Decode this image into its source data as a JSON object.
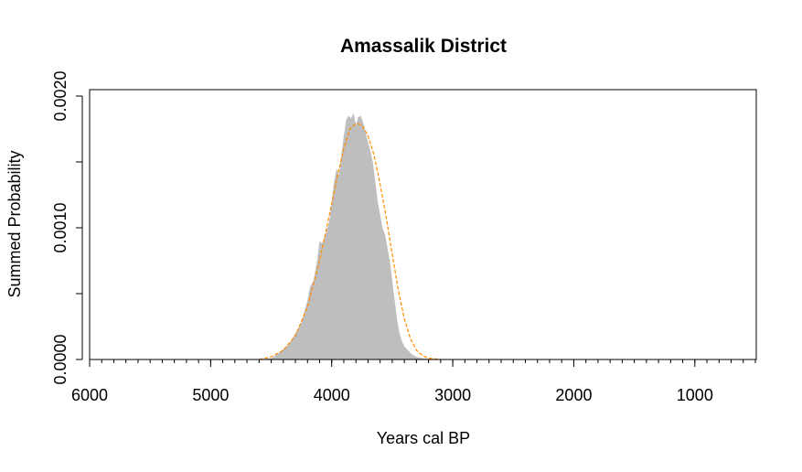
{
  "chart_data": {
    "type": "area",
    "title": "Amassalik District",
    "xlabel": "Years cal BP",
    "ylabel": "Summed Probability",
    "xlim": [
      6000,
      500
    ],
    "ylim": [
      0,
      0.002
    ],
    "x_ticks": [
      6000,
      5000,
      4000,
      3000,
      2000,
      1000
    ],
    "x_tick_labels": [
      "6000",
      "5000",
      "4000",
      "3000",
      "2000",
      "1000"
    ],
    "y_ticks": [
      0,
      0.0005,
      0.001,
      0.0015,
      0.002
    ],
    "y_tick_labels": [
      "0.0000",
      "",
      "0.0010",
      "",
      "0.0020"
    ],
    "x_minor_step": 100,
    "grid": false,
    "series": [
      {
        "kind": "histogram-area",
        "color": "#bebebe",
        "x": [
          4600,
          4500,
          4450,
          4400,
          4350,
          4300,
          4250,
          4200,
          4180,
          4150,
          4120,
          4100,
          4080,
          4050,
          4020,
          4000,
          3980,
          3960,
          3940,
          3920,
          3900,
          3880,
          3860,
          3840,
          3820,
          3800,
          3780,
          3760,
          3740,
          3720,
          3700,
          3680,
          3660,
          3640,
          3620,
          3600,
          3580,
          3560,
          3540,
          3520,
          3500,
          3480,
          3460,
          3440,
          3420,
          3400,
          3380,
          3360,
          3340,
          3300,
          3250,
          3200,
          3150,
          3100
        ],
        "values": [
          0,
          1e-05,
          4e-05,
          8e-05,
          0.00012,
          0.0002,
          0.00028,
          0.00045,
          0.00055,
          0.0006,
          0.00075,
          0.0009,
          0.00088,
          0.00095,
          0.00105,
          0.0012,
          0.00135,
          0.00145,
          0.0014,
          0.00155,
          0.0017,
          0.00182,
          0.00185,
          0.00183,
          0.00187,
          0.00178,
          0.00184,
          0.00185,
          0.0018,
          0.00172,
          0.00165,
          0.00158,
          0.0015,
          0.00135,
          0.0012,
          0.0011,
          0.001,
          0.00095,
          0.00085,
          0.00075,
          0.0006,
          0.00045,
          0.0003,
          0.0002,
          0.00014,
          0.0001,
          8e-05,
          6e-05,
          4e-05,
          2e-05,
          1e-05,
          5e-06,
          0,
          0
        ]
      },
      {
        "kind": "dashed-line",
        "color": "#ff8c00",
        "x": [
          4600,
          4500,
          4400,
          4300,
          4200,
          4100,
          4000,
          3950,
          3900,
          3850,
          3800,
          3750,
          3700,
          3650,
          3600,
          3550,
          3500,
          3450,
          3400,
          3350,
          3300,
          3250,
          3200,
          3100
        ],
        "values": [
          0,
          2e-05,
          7e-05,
          0.00018,
          0.0004,
          0.00075,
          0.00118,
          0.0014,
          0.0016,
          0.00175,
          0.00179,
          0.00178,
          0.0017,
          0.00155,
          0.00133,
          0.00108,
          0.0008,
          0.00053,
          0.00031,
          0.00016,
          7e-05,
          3e-05,
          1e-05,
          0
        ]
      }
    ]
  }
}
